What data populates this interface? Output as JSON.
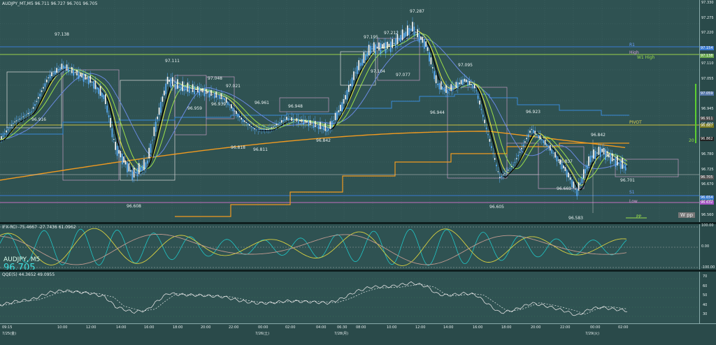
{
  "header": {
    "title": "AUDJPY_MT,M5  96.711 96.727 96.701 96.705",
    "ind1": "IFX-RCI -75.4667 -27.7436 61.0962",
    "ind2": "QQE(5) 44.3652 49.0955",
    "symbol": "AUDJPY, M5",
    "price": "96.705"
  },
  "right_axis": {
    "main": [
      "97.330",
      "97.275",
      "97.220",
      "97.165",
      "97.110",
      "97.055",
      "97.000",
      "96.945",
      "96.890",
      "96.835",
      "96.780",
      "96.725",
      "96.670",
      "96.615",
      "96.560"
    ],
    "rci": [
      "100.00",
      "0.00",
      "-100.00"
    ],
    "qqe": [
      "70",
      "60",
      "50",
      "40",
      "30"
    ]
  },
  "tags": [
    {
      "text": "97.154",
      "color": "#3a7ad0"
    },
    {
      "text": "97.138",
      "color": "#6aa84f"
    },
    {
      "text": "97.059",
      "color": "#5577aa"
    },
    {
      "text": "96.911",
      "color": "#444"
    },
    {
      "text": "96.887",
      "color": "#7a7a20"
    },
    {
      "text": "96.862",
      "color": "#222"
    },
    {
      "text": "96.705",
      "color": "#555"
    },
    {
      "text": "96.654",
      "color": "#3a7ad0"
    },
    {
      "text": "96.632",
      "color": "#a050c0"
    }
  ],
  "levels": {
    "r1": "R1",
    "high": "High",
    "w1high": "W1 High",
    "pivot": "PIVOT",
    "s1": "S1",
    "low": "Low",
    "pp": "PP",
    "wpp": "W pp",
    "marker_20": "20"
  },
  "annotations": [
    "97.138",
    "97.111",
    "97.048",
    "97.021",
    "96.959",
    "96.939",
    "96.916",
    "96.818",
    "96.811",
    "96.961",
    "96.948",
    "96.842",
    "96.608",
    "97.195",
    "97.212",
    "97.287",
    "97.104",
    "97.077",
    "97.095",
    "96.944",
    "96.923",
    "96.842",
    "96.837",
    "96.669",
    "96.605",
    "96.583",
    "96.701"
  ],
  "time_axis": [
    "09:15",
    "10:00",
    "12:00",
    "14:00",
    "16:00",
    "18:00",
    "20:00",
    "22:00",
    "00:00",
    "02:00",
    "04:00",
    "06:30",
    "08:00",
    "10:00",
    "12:00",
    "14:00",
    "16:00",
    "18:00",
    "20:00",
    "22:00",
    "00:00",
    "02:00"
  ],
  "dates": [
    "7/25(金)",
    "7/26(土)",
    "7/28(月)",
    "7/29(火)"
  ],
  "colors": {
    "bg": "#2f5252",
    "candle": "#5ab0ff",
    "ma_black": "#000000",
    "ma_yellow": "#e8f040",
    "ma_green": "#9be04a",
    "ma_orange": "#f09a20",
    "ma_blue": "#6a8ae0",
    "rci_cyan": "#20c8c8",
    "qqe_white": "#e0e0e0"
  }
}
